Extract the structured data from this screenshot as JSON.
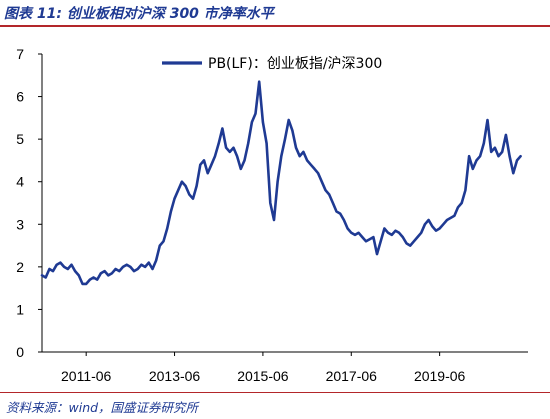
{
  "header": {
    "title": "图表 11: 创业板相对沪深 300 市净率水平"
  },
  "footer": {
    "source": "资料来源：wind，国盛证券研究所"
  },
  "colors": {
    "line": "#1f3a93",
    "accent_rule": "#b3262a",
    "title_text": "#1f3a93"
  },
  "chart_data": {
    "type": "line",
    "title": "",
    "xlabel": "",
    "ylabel": "",
    "ylim": [
      0,
      7
    ],
    "yticks": [
      "0",
      "1",
      "2",
      "3",
      "4",
      "5",
      "6",
      "7"
    ],
    "xlim": [
      "2010-06",
      "2021-06"
    ],
    "xticks": [
      {
        "label": "2011-06",
        "date": "2011-06"
      },
      {
        "label": "2013-06",
        "date": "2013-06"
      },
      {
        "label": "2015-06",
        "date": "2015-06"
      },
      {
        "label": "2017-06",
        "date": "2017-06"
      },
      {
        "label": "2019-06",
        "date": "2019-06"
      }
    ],
    "grid": false,
    "legend": "top-center",
    "series": [
      {
        "name": "PB(LF)：创业板指/沪深300",
        "points": [
          [
            "2010-06",
            1.8
          ],
          [
            "2010-07",
            1.75
          ],
          [
            "2010-08",
            1.95
          ],
          [
            "2010-09",
            1.9
          ],
          [
            "2010-10",
            2.05
          ],
          [
            "2010-11",
            2.1
          ],
          [
            "2010-12",
            2.0
          ],
          [
            "2011-01",
            1.95
          ],
          [
            "2011-02",
            2.05
          ],
          [
            "2011-03",
            1.9
          ],
          [
            "2011-04",
            1.8
          ],
          [
            "2011-05",
            1.6
          ],
          [
            "2011-06",
            1.6
          ],
          [
            "2011-07",
            1.7
          ],
          [
            "2011-08",
            1.75
          ],
          [
            "2011-09",
            1.7
          ],
          [
            "2011-10",
            1.85
          ],
          [
            "2011-11",
            1.9
          ],
          [
            "2011-12",
            1.8
          ],
          [
            "2012-01",
            1.85
          ],
          [
            "2012-02",
            1.95
          ],
          [
            "2012-03",
            1.9
          ],
          [
            "2012-04",
            2.0
          ],
          [
            "2012-05",
            2.05
          ],
          [
            "2012-06",
            2.0
          ],
          [
            "2012-07",
            1.9
          ],
          [
            "2012-08",
            1.95
          ],
          [
            "2012-09",
            2.05
          ],
          [
            "2012-10",
            2.0
          ],
          [
            "2012-11",
            2.1
          ],
          [
            "2012-12",
            1.95
          ],
          [
            "2013-01",
            2.15
          ],
          [
            "2013-02",
            2.5
          ],
          [
            "2013-03",
            2.6
          ],
          [
            "2013-04",
            2.9
          ],
          [
            "2013-05",
            3.3
          ],
          [
            "2013-06",
            3.6
          ],
          [
            "2013-07",
            3.8
          ],
          [
            "2013-08",
            4.0
          ],
          [
            "2013-09",
            3.9
          ],
          [
            "2013-10",
            3.7
          ],
          [
            "2013-11",
            3.6
          ],
          [
            "2013-12",
            3.9
          ],
          [
            "2014-01",
            4.4
          ],
          [
            "2014-02",
            4.5
          ],
          [
            "2014-03",
            4.2
          ],
          [
            "2014-04",
            4.4
          ],
          [
            "2014-05",
            4.6
          ],
          [
            "2014-06",
            4.9
          ],
          [
            "2014-07",
            5.25
          ],
          [
            "2014-08",
            4.8
          ],
          [
            "2014-09",
            4.7
          ],
          [
            "2014-10",
            4.8
          ],
          [
            "2014-11",
            4.6
          ],
          [
            "2014-12",
            4.3
          ],
          [
            "2015-01",
            4.5
          ],
          [
            "2015-02",
            4.9
          ],
          [
            "2015-03",
            5.4
          ],
          [
            "2015-04",
            5.6
          ],
          [
            "2015-05",
            6.35
          ],
          [
            "2015-06",
            5.4
          ],
          [
            "2015-07",
            4.9
          ],
          [
            "2015-08",
            3.5
          ],
          [
            "2015-09",
            3.1
          ],
          [
            "2015-10",
            4.0
          ],
          [
            "2015-11",
            4.6
          ],
          [
            "2015-12",
            5.0
          ],
          [
            "2016-01",
            5.45
          ],
          [
            "2016-02",
            5.2
          ],
          [
            "2016-03",
            4.8
          ],
          [
            "2016-04",
            4.6
          ],
          [
            "2016-05",
            4.7
          ],
          [
            "2016-06",
            4.5
          ],
          [
            "2016-07",
            4.4
          ],
          [
            "2016-08",
            4.3
          ],
          [
            "2016-09",
            4.2
          ],
          [
            "2016-10",
            4.0
          ],
          [
            "2016-11",
            3.8
          ],
          [
            "2016-12",
            3.7
          ],
          [
            "2017-01",
            3.5
          ],
          [
            "2017-02",
            3.3
          ],
          [
            "2017-03",
            3.25
          ],
          [
            "2017-04",
            3.1
          ],
          [
            "2017-05",
            2.9
          ],
          [
            "2017-06",
            2.8
          ],
          [
            "2017-07",
            2.75
          ],
          [
            "2017-08",
            2.8
          ],
          [
            "2017-09",
            2.7
          ],
          [
            "2017-10",
            2.6
          ],
          [
            "2017-11",
            2.65
          ],
          [
            "2017-12",
            2.7
          ],
          [
            "2018-01",
            2.3
          ],
          [
            "2018-02",
            2.6
          ],
          [
            "2018-03",
            2.9
          ],
          [
            "2018-04",
            2.8
          ],
          [
            "2018-05",
            2.75
          ],
          [
            "2018-06",
            2.85
          ],
          [
            "2018-07",
            2.8
          ],
          [
            "2018-08",
            2.7
          ],
          [
            "2018-09",
            2.55
          ],
          [
            "2018-10",
            2.5
          ],
          [
            "2018-11",
            2.6
          ],
          [
            "2018-12",
            2.7
          ],
          [
            "2019-01",
            2.8
          ],
          [
            "2019-02",
            3.0
          ],
          [
            "2019-03",
            3.1
          ],
          [
            "2019-04",
            2.95
          ],
          [
            "2019-05",
            2.85
          ],
          [
            "2019-06",
            2.9
          ],
          [
            "2019-07",
            3.0
          ],
          [
            "2019-08",
            3.1
          ],
          [
            "2019-09",
            3.15
          ],
          [
            "2019-10",
            3.2
          ],
          [
            "2019-11",
            3.4
          ],
          [
            "2019-12",
            3.5
          ],
          [
            "2020-01",
            3.8
          ],
          [
            "2020-02",
            4.6
          ],
          [
            "2020-03",
            4.3
          ],
          [
            "2020-04",
            4.5
          ],
          [
            "2020-05",
            4.6
          ],
          [
            "2020-06",
            4.9
          ],
          [
            "2020-07",
            5.45
          ],
          [
            "2020-08",
            4.7
          ],
          [
            "2020-09",
            4.8
          ],
          [
            "2020-10",
            4.6
          ],
          [
            "2020-11",
            4.7
          ],
          [
            "2020-12",
            5.1
          ],
          [
            "2021-01",
            4.6
          ],
          [
            "2021-02",
            4.2
          ],
          [
            "2021-03",
            4.5
          ],
          [
            "2021-04",
            4.6
          ]
        ]
      }
    ]
  }
}
